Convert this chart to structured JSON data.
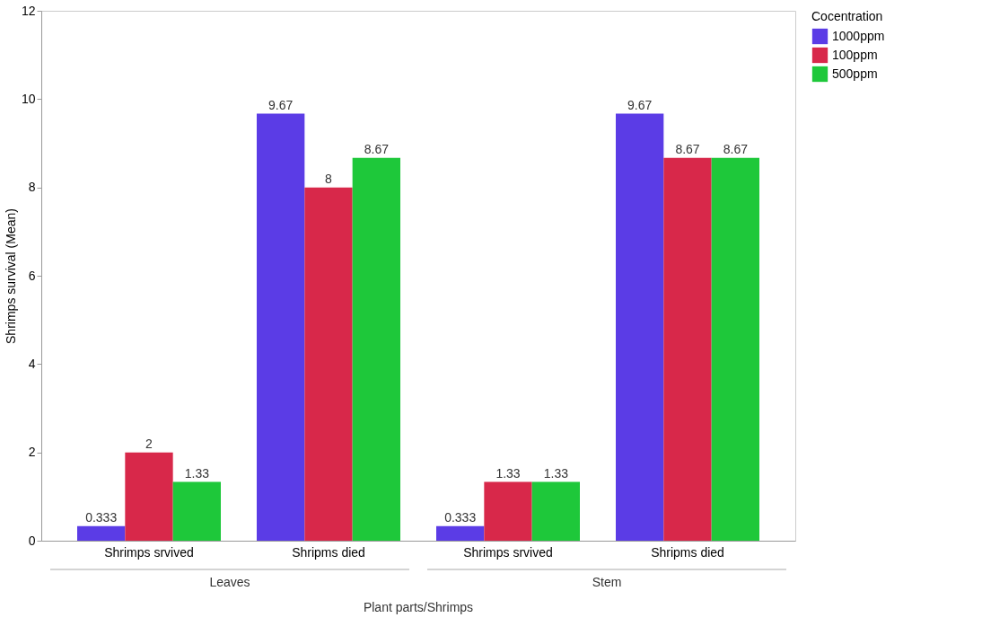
{
  "chart_data": {
    "type": "bar",
    "xlabel": "Plant parts/Shrimps",
    "ylabel": "Shrimps survival (Mean)",
    "legend_title": "Cocentration",
    "legend": "top right",
    "data_labels": true,
    "grid": false,
    "categories": [
      "Shrimps srvived",
      "Shripms died",
      "Shrimps srvived",
      "Shripms died"
    ],
    "series": [
      {
        "name": "1000ppm",
        "color": "#5b3ce6",
        "values": [
          0.333,
          9.67,
          0.333,
          9.67
        ]
      },
      {
        "name": "100ppm",
        "color": "#d8284a",
        "values": [
          2,
          8,
          1.33,
          8.67
        ]
      },
      {
        "name": "500ppm",
        "color": "#1ec83a",
        "values": [
          1.33,
          8.67,
          1.33,
          8.67
        ]
      }
    ],
    "ylim": [
      0,
      12
    ],
    "yticks": [
      0,
      2,
      4,
      6,
      8,
      10,
      12
    ],
    "annotations": [
      "Leaves",
      "Stem"
    ]
  }
}
